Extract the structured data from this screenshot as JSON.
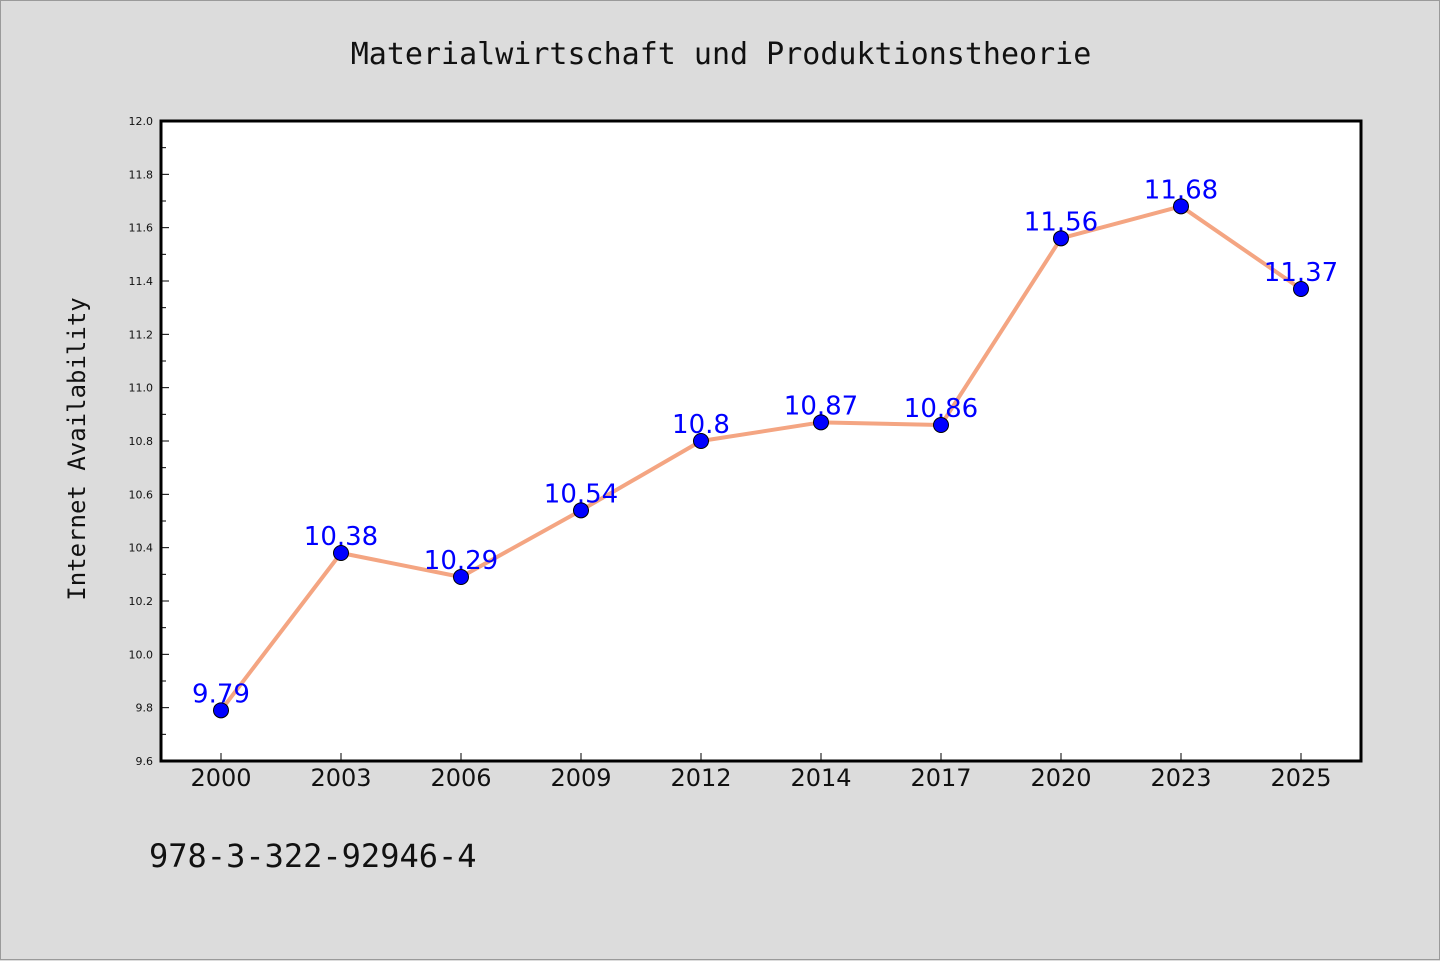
{
  "chart_data": {
    "type": "line",
    "title": "Materialwirtschaft und Produktionstheorie",
    "xlabel": "",
    "ylabel": "Internet Availability",
    "categories": [
      "2000",
      "2003",
      "2006",
      "2009",
      "2012",
      "2014",
      "2017",
      "2020",
      "2023",
      "2025"
    ],
    "series": [
      {
        "values": [
          9.79,
          10.38,
          10.29,
          10.54,
          10.8,
          10.87,
          10.86,
          11.56,
          11.68,
          11.37
        ],
        "data_labels": [
          "9.79",
          "10.38",
          "10.29",
          "10.54",
          "10.8",
          "10.87",
          "10.86",
          "11.56",
          "11.68",
          "11.37"
        ],
        "line_color": "#f4a582",
        "marker_color": "#0000ff",
        "label_color": "#0000ff"
      }
    ],
    "ylim": [
      9.6,
      12.0
    ],
    "yticks": [
      "9.6",
      "9.8",
      "10.0",
      "10.2",
      "10.4",
      "10.6",
      "10.8",
      "11.0",
      "11.2",
      "11.4",
      "11.6",
      "11.8",
      "12.0"
    ],
    "grid": false,
    "legend": "none",
    "background": "#dcdcdc",
    "plot_background": "#ffffff"
  },
  "footer": {
    "isbn": "978-3-322-92946-4"
  }
}
